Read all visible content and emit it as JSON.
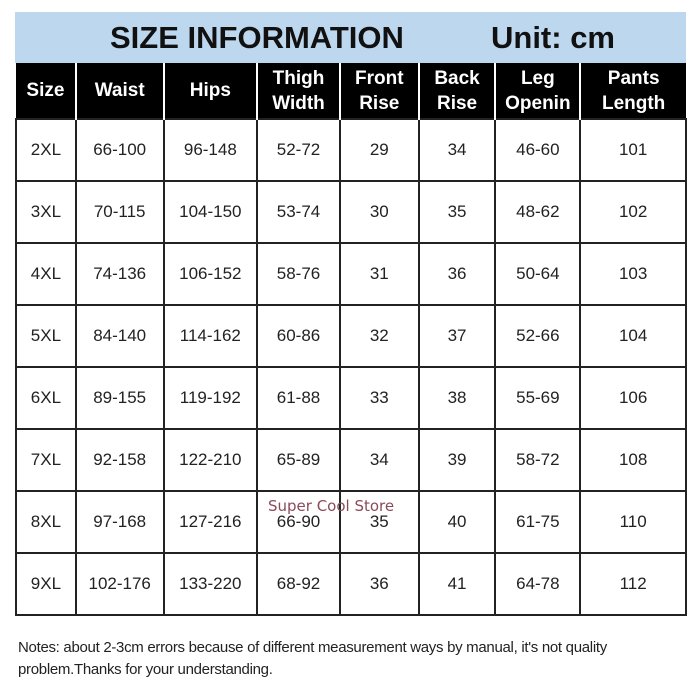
{
  "header": {
    "title": "SIZE INFORMATION",
    "unit": "Unit: cm"
  },
  "table": {
    "columns": [
      "Size",
      "Waist",
      "Hips",
      "Thigh Width",
      "Front Rise",
      "Back Rise",
      "Leg Openin",
      "Pants Length"
    ],
    "rows": [
      [
        "2XL",
        "66-100",
        "96-148",
        "52-72",
        "29",
        "34",
        "46-60",
        "101"
      ],
      [
        "3XL",
        "70-115",
        "104-150",
        "53-74",
        "30",
        "35",
        "48-62",
        "102"
      ],
      [
        "4XL",
        "74-136",
        "106-152",
        "58-76",
        "31",
        "36",
        "50-64",
        "103"
      ],
      [
        "5XL",
        "84-140",
        "114-162",
        "60-86",
        "32",
        "37",
        "52-66",
        "104"
      ],
      [
        "6XL",
        "89-155",
        "119-192",
        "61-88",
        "33",
        "38",
        "55-69",
        "106"
      ],
      [
        "7XL",
        "92-158",
        "122-210",
        "65-89",
        "34",
        "39",
        "58-72",
        "108"
      ],
      [
        "8XL",
        "97-168",
        "127-216",
        "66-90",
        "35",
        "40",
        "61-75",
        "110"
      ],
      [
        "9XL",
        "102-176",
        "133-220",
        "68-92",
        "36",
        "41",
        "64-78",
        "112"
      ]
    ]
  },
  "watermark": "Super Cool Store",
  "notes": "Notes: about 2-3cm errors because of different measurement ways by manual, it's not quality problem.Thanks for your understanding.",
  "colors": {
    "title_band": "#bdd7ee",
    "header_bg": "#000000",
    "watermark": "#8b4a5a"
  }
}
